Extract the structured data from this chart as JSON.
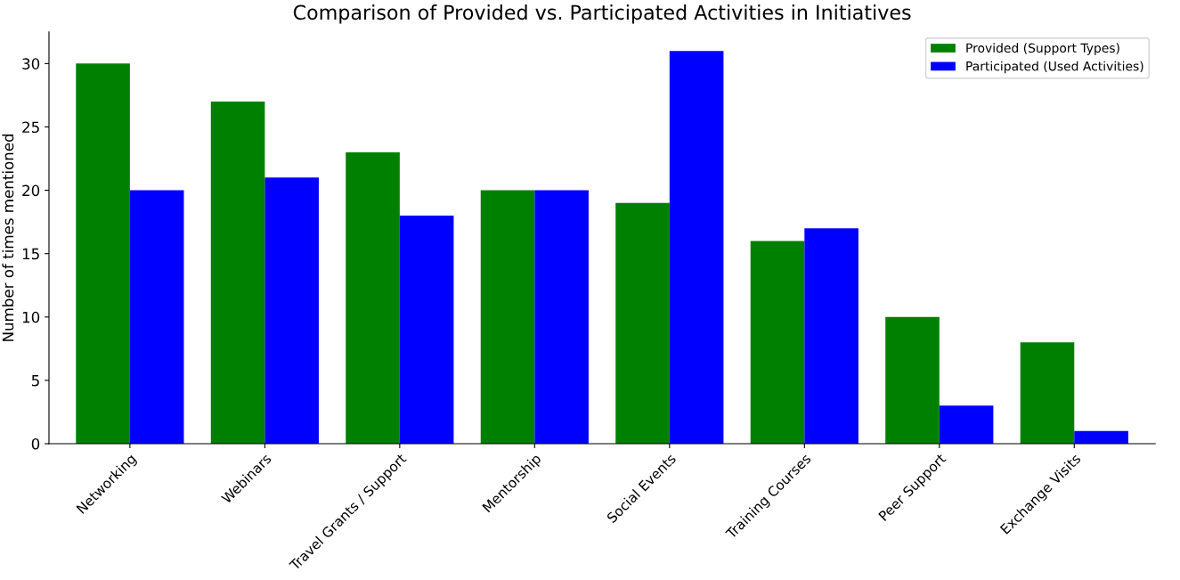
{
  "chart_data": {
    "type": "bar",
    "title": "Comparison of Provided vs. Participated Activities in Initiatives",
    "ylabel": "Number of times mentioned",
    "categories": [
      "Networking",
      "Webinars",
      "Travel Grants / Support",
      "Mentorship",
      "Social Events",
      "Training Courses",
      "Peer Support",
      "Exchange Visits"
    ],
    "series": [
      {
        "name": "Provided (Support Types)",
        "color": "#008000",
        "values": [
          30,
          27,
          23,
          20,
          19,
          16,
          10,
          8
        ]
      },
      {
        "name": "Participated (Used Activities)",
        "color": "#0000ff",
        "values": [
          20,
          21,
          18,
          20,
          31,
          17,
          3,
          1
        ]
      }
    ],
    "ylim": [
      0,
      32.5
    ],
    "yticks": [
      0,
      5,
      10,
      15,
      20,
      25,
      30
    ],
    "grid": false,
    "legend": "top right"
  }
}
